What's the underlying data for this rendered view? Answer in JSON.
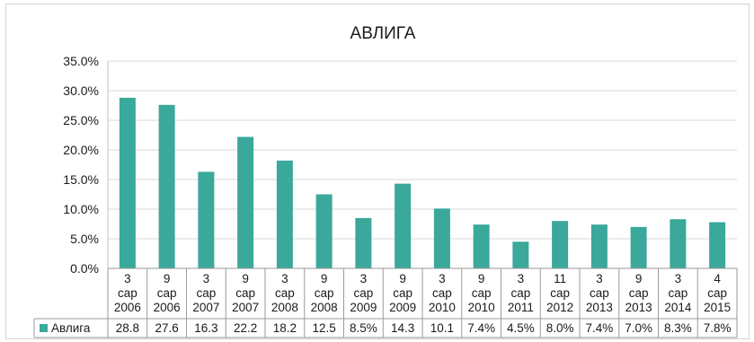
{
  "chart_data": {
    "type": "bar",
    "title": "АВЛИГА",
    "categories": [
      [
        "3",
        "сар",
        "2006"
      ],
      [
        "9",
        "сар",
        "2006"
      ],
      [
        "3",
        "сар",
        "2007"
      ],
      [
        "9",
        "сар",
        "2007"
      ],
      [
        "3",
        "сар",
        "2008"
      ],
      [
        "9",
        "сар",
        "2008"
      ],
      [
        "3",
        "сар",
        "2009"
      ],
      [
        "9",
        "сар",
        "2009"
      ],
      [
        "3",
        "сар",
        "2010"
      ],
      [
        "9",
        "сар",
        "2010"
      ],
      [
        "3",
        "сар",
        "2011"
      ],
      [
        "11",
        "сар",
        "2012"
      ],
      [
        "3",
        "сар",
        "2013"
      ],
      [
        "9",
        "сар",
        "2013"
      ],
      [
        "3",
        "сар",
        "2014"
      ],
      [
        "4",
        "сар",
        "2015"
      ]
    ],
    "series": [
      {
        "name": "Авлига",
        "color": "#3aa89b",
        "values": [
          28.8,
          27.6,
          16.3,
          22.2,
          18.2,
          12.5,
          8.5,
          14.3,
          10.1,
          7.4,
          4.5,
          8.0,
          7.4,
          7.0,
          8.3,
          7.8
        ],
        "table_labels": [
          "28.8",
          "27.6",
          "16.3",
          "22.2",
          "18.2",
          "12.5",
          "8.5%",
          "14.3",
          "10.1",
          "7.4%",
          "4.5%",
          "8.0%",
          "7.4%",
          "7.0%",
          "8.3%",
          "7.8%"
        ]
      }
    ],
    "y_ticks": [
      "35.0%",
      "30.0%",
      "25.0%",
      "20.0%",
      "15.0%",
      "10.0%",
      "5.0%",
      "0.0%"
    ],
    "ylim": [
      0,
      35
    ],
    "grid": true,
    "legend": "data-table"
  }
}
